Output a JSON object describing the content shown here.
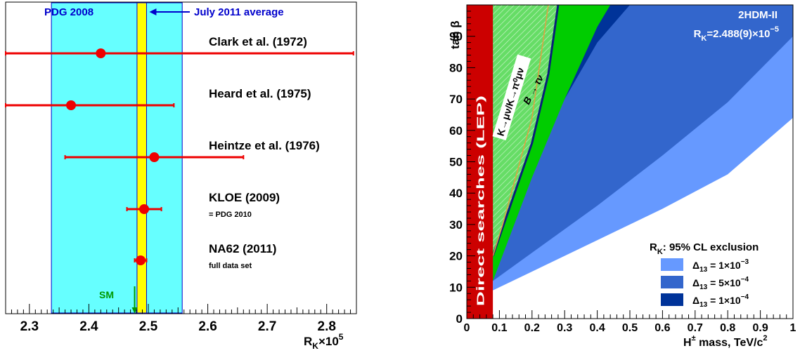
{
  "chart_data": [
    {
      "type": "scatter",
      "xlabel_main": "R",
      "xlabel_sub": "K",
      "xlabel_rest": "×10",
      "xlabel_sup": "5",
      "xlim": [
        2.26,
        2.85
      ],
      "xticks": [
        "2.3",
        "2.4",
        "2.5",
        "2.6",
        "2.7",
        "2.8"
      ],
      "xtick_values": [
        2.3,
        2.4,
        2.5,
        2.6,
        2.7,
        2.8
      ],
      "bands": {
        "pdg2008": {
          "label": "PDG 2008",
          "min": 2.337,
          "max": 2.557,
          "color": "#66ffff"
        },
        "average": {
          "label": "July 2011 average",
          "min": 2.481,
          "max": 2.497,
          "color": "#ffff00"
        }
      },
      "sm": {
        "label": "SM",
        "value": 2.477
      },
      "points": [
        {
          "label": "Clark et al. (1972)",
          "sub": "",
          "x": 2.42,
          "lo": 2.26,
          "hi": 2.845
        },
        {
          "label": "Heard et al. (1975)",
          "sub": "",
          "x": 2.37,
          "lo": 2.26,
          "hi": 2.543
        },
        {
          "label": "Heintze et al. (1976)",
          "sub": "",
          "x": 2.51,
          "lo": 2.36,
          "hi": 2.66
        },
        {
          "label": "KLOE (2009)",
          "sub": "= PDG 2010",
          "x": 2.493,
          "lo": 2.464,
          "hi": 2.522
        },
        {
          "label": "NA62 (2011)",
          "sub": "full data set",
          "x": 2.487,
          "lo": 2.477,
          "hi": 2.497
        }
      ]
    },
    {
      "type": "area",
      "xlabel": "mass, TeV/c",
      "xlabel_prefix": "H",
      "xlabel_sup_pm": "±",
      "xlabel_sup": "2",
      "ylabel": "tan β",
      "xlim": [
        0,
        1
      ],
      "ylim": [
        0,
        100
      ],
      "xticks": [
        "0",
        "0.1",
        "0.2",
        "0.3",
        "0.4",
        "0.5",
        "0.6",
        "0.7",
        "0.8",
        "0.9",
        "1"
      ],
      "yticks": [
        "0",
        "10",
        "20",
        "30",
        "40",
        "50",
        "60",
        "70",
        "80",
        "90"
      ],
      "model": "2HDM-II",
      "rk_main": "R",
      "rk_sub": "K",
      "rk_rest": "=2.488(9)×10",
      "rk_sup": "−5",
      "lep_label": "Direct searches (LEP)",
      "lep_max": 0.08,
      "kaon_label": "K→μν/K→π⁰μν",
      "btau_label": "B → τν",
      "legend_title_main": "R",
      "legend_title_sub": "K",
      "legend_title_rest": ": 95% CL exclusion",
      "legend": [
        {
          "prefix": "Δ",
          "sub": "13",
          "mid": " = 1×10",
          "sup": "−3",
          "color": "#6699ff"
        },
        {
          "prefix": "Δ",
          "sub": "13",
          "mid": " = 5×10",
          "sup": "−4",
          "color": "#3366cc"
        },
        {
          "prefix": "Δ",
          "sub": "13",
          "mid": " = 1×10",
          "sup": "−4",
          "color": "#003399"
        }
      ],
      "colors": {
        "lep": "#cc0000",
        "btau": "#00cc00",
        "hatch": "#00aa00"
      },
      "regions": {
        "d13_1e-3_boundary": {
          "x": [
            0.08,
            0.2,
            0.4,
            0.6,
            0.8,
            1.0
          ],
          "y": [
            9,
            15,
            25,
            35,
            46,
            64
          ]
        },
        "d13_5e-4_boundary": {
          "x": [
            0.08,
            0.2,
            0.4,
            0.6,
            0.8,
            1.0
          ],
          "y": [
            12,
            21,
            36,
            52,
            69,
            90
          ]
        },
        "d13_1e-4_boundary": {
          "x": [
            0.08,
            0.2,
            0.3,
            0.4,
            0.5,
            0.6
          ],
          "y": [
            20,
            47,
            70,
            88,
            100,
            100
          ]
        },
        "btau_right_edge": {
          "x": [
            0.08,
            0.2,
            0.3,
            0.4,
            0.44
          ],
          "y": [
            12,
            45,
            70,
            93,
            100
          ]
        },
        "kaon_band_lower": {
          "x": [
            0.08,
            0.2,
            0.25,
            0.28
          ],
          "y": [
            20,
            56,
            78,
            100
          ]
        },
        "kaon_band_upper": {
          "x": [
            0.08,
            0.11,
            0.2,
            0.25
          ],
          "y": [
            20,
            30,
            64,
            100
          ]
        }
      }
    }
  ]
}
